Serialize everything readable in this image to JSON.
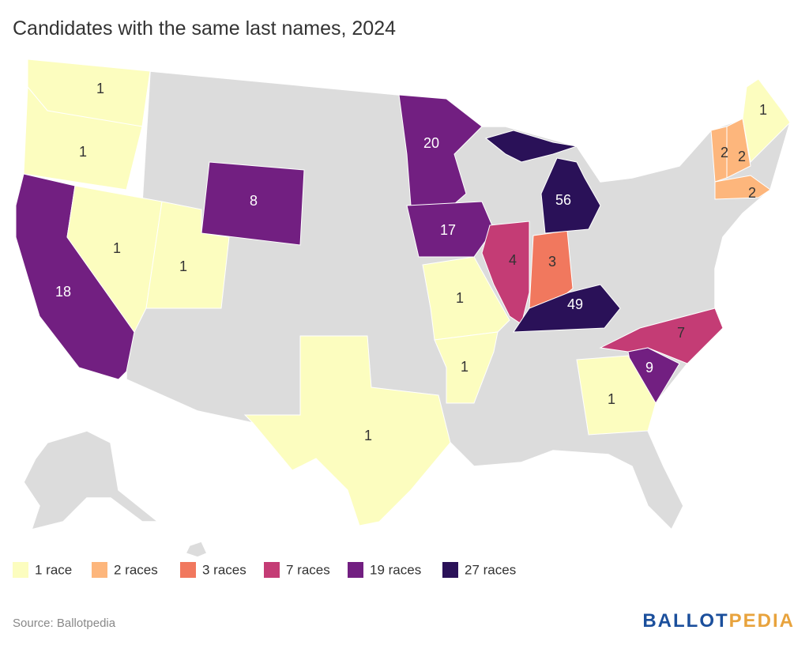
{
  "title": "Candidates with the same last names, 2024",
  "states": [
    {
      "value": 1,
      "color": "#fcfdbf"
    },
    {
      "value": 1,
      "color": "#fcfdbf"
    },
    {
      "value": 18,
      "color": "#721f81"
    },
    {
      "value": 1,
      "color": "#fcfdbf"
    },
    {
      "value": 1,
      "color": "#fcfdbf"
    },
    {
      "value": 8,
      "color": "#721f81"
    },
    {
      "value": 20,
      "color": "#721f81"
    },
    {
      "value": 17,
      "color": "#721f81"
    },
    {
      "value": 1,
      "color": "#fcfdbf"
    },
    {
      "value": 1,
      "color": "#fcfdbf"
    },
    {
      "value": 1,
      "color": "#fcfdbf"
    },
    {
      "value": 4,
      "color": "#c43c75"
    },
    {
      "value": 3,
      "color": "#f1785e"
    },
    {
      "value": 56,
      "color": "#2a1158"
    },
    {
      "value": 49,
      "color": "#2a1158"
    },
    {
      "value": 7,
      "color": "#c43c75"
    },
    {
      "value": 9,
      "color": "#721f81"
    },
    {
      "value": 1,
      "color": "#fcfdbf"
    },
    {
      "value": 2,
      "color": "#fdb67c"
    },
    {
      "value": 2,
      "color": "#fdb67c"
    },
    {
      "value": 2,
      "color": "#fdb67c"
    },
    {
      "value": 1,
      "color": "#fcfdbf"
    }
  ],
  "legend": [
    {
      "label": "1 race",
      "color": "#fcfdbf"
    },
    {
      "label": "2 races",
      "color": "#fdb67c"
    },
    {
      "label": "3 races",
      "color": "#f1785e"
    },
    {
      "label": "7 races",
      "color": "#c43c75"
    },
    {
      "label": "19 races",
      "color": "#721f81"
    },
    {
      "label": "27 races",
      "color": "#2a1158"
    }
  ],
  "source": "Source: Ballotpedia",
  "logo": {
    "part1": "BALLOT",
    "part2": "PEDIA"
  }
}
